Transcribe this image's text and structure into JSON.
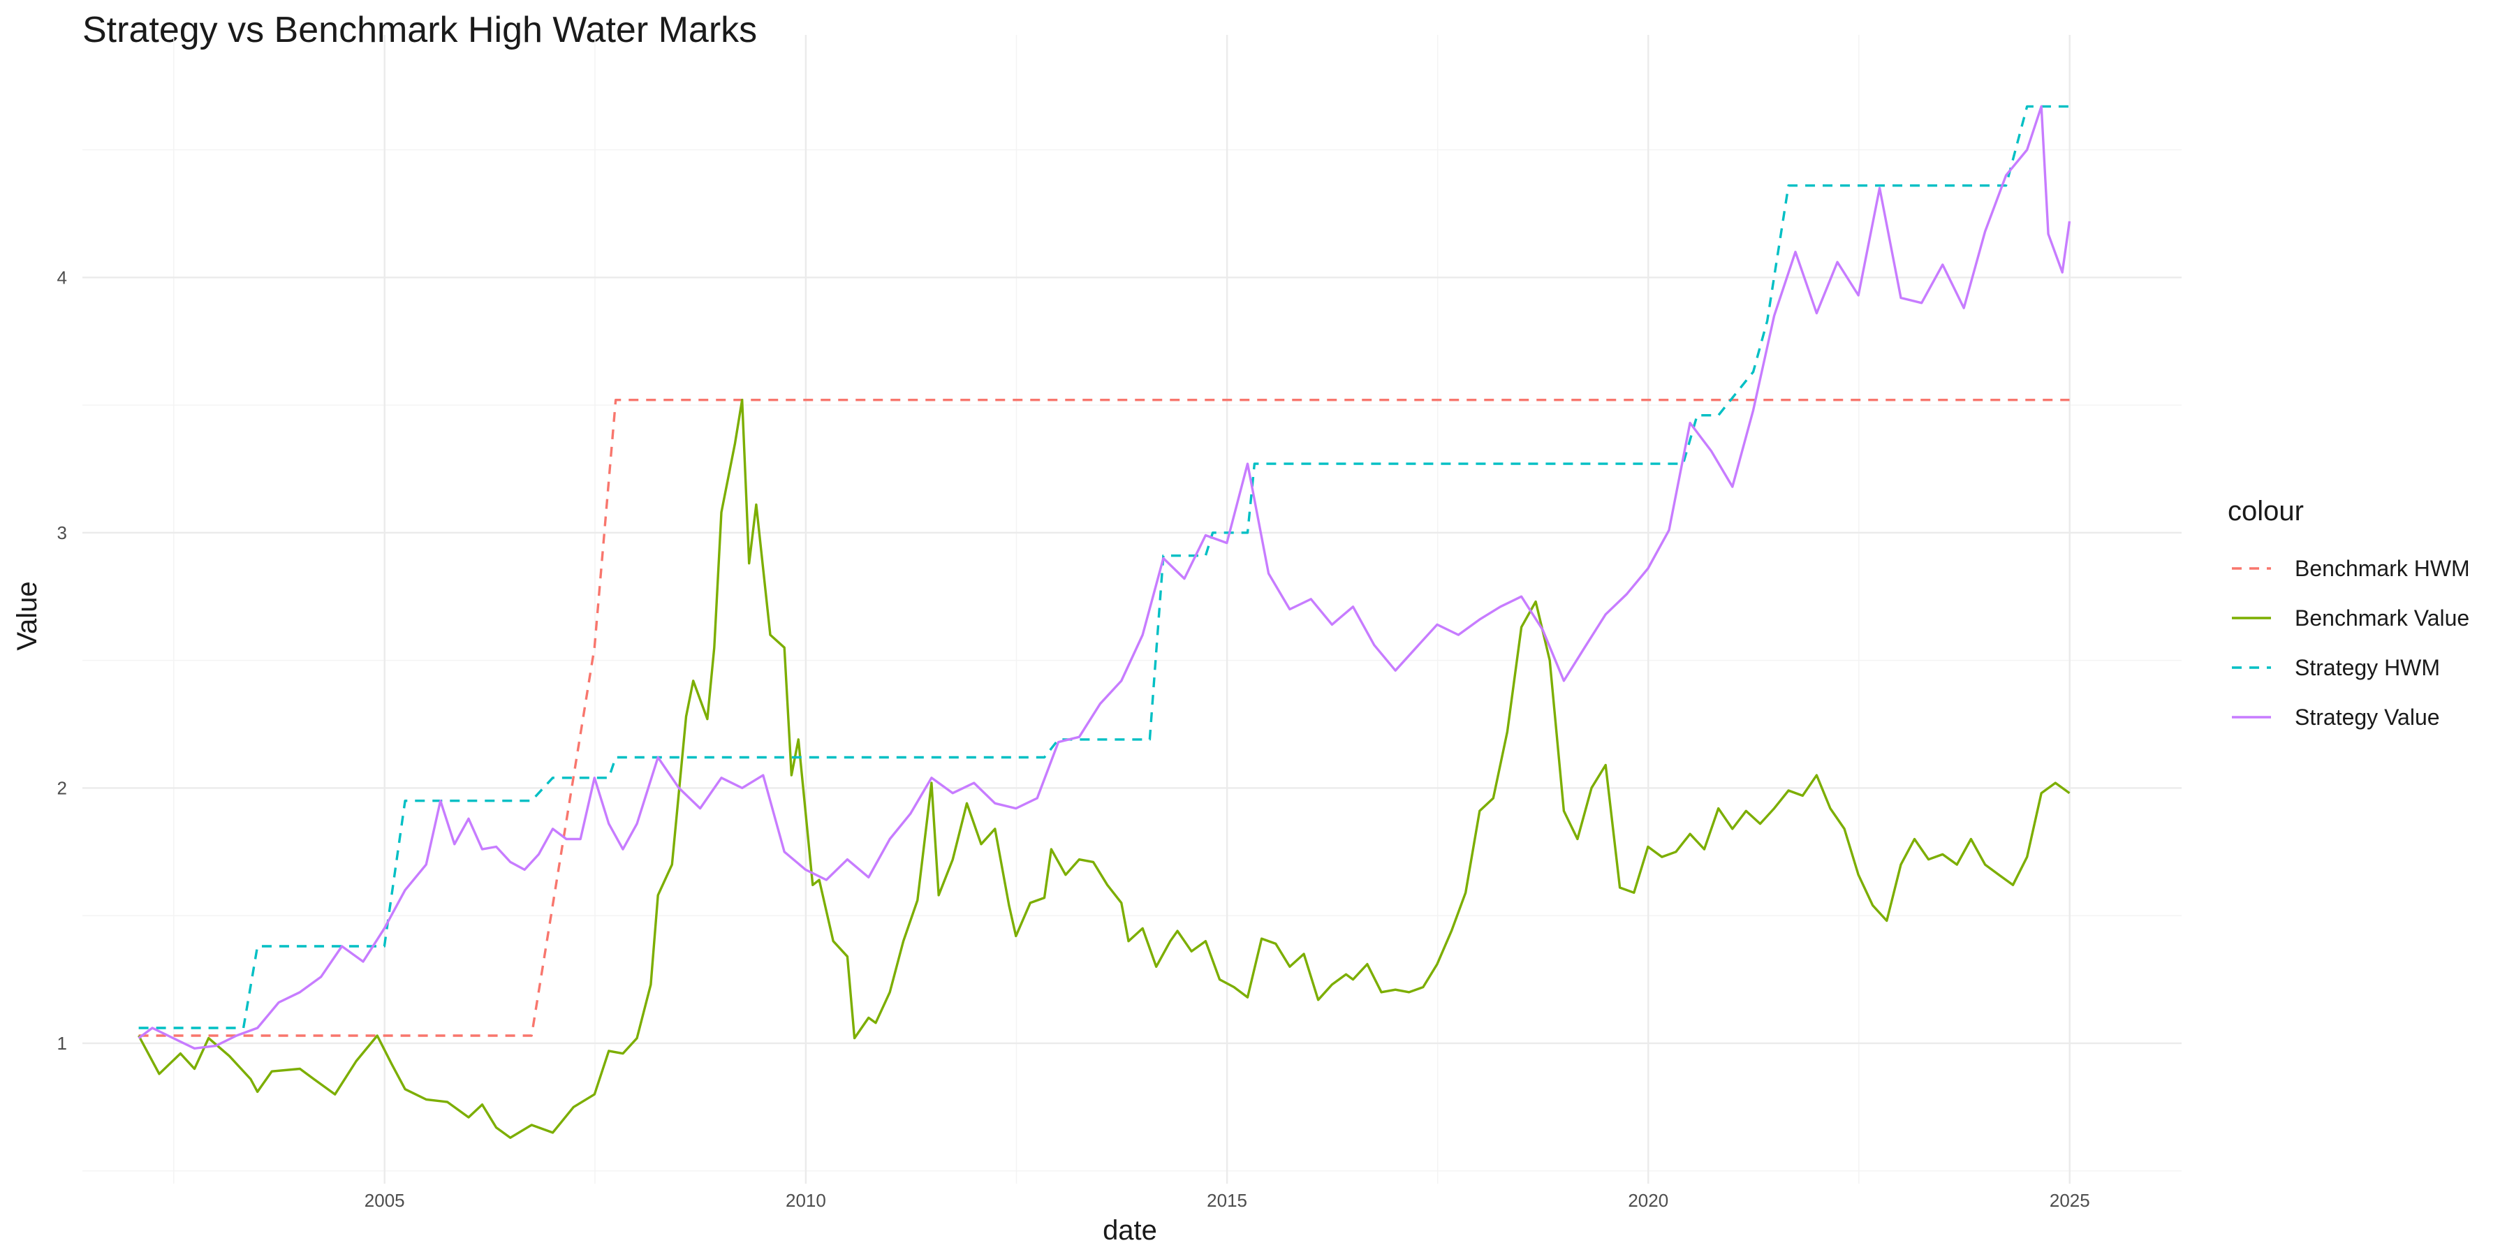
{
  "chart_data": {
    "type": "line",
    "title": "Strategy vs Benchmark High Water Marks",
    "xlabel": "date",
    "ylabel": "Value",
    "xlim": [
      "2001-06-01",
      "2026-05-01"
    ],
    "ylim": [
      0.45,
      4.95
    ],
    "x_ticks": [
      "2005",
      "2010",
      "2015",
      "2020",
      "2025"
    ],
    "y_ticks": [
      "1",
      "2",
      "3",
      "4"
    ],
    "grid": true,
    "legend": {
      "title": "colour",
      "position": "right",
      "items": [
        {
          "label": "Benchmark HWM",
          "color": "#F8766D",
          "dash": true
        },
        {
          "label": "Benchmark Value",
          "color": "#7CAE00",
          "dash": false
        },
        {
          "label": "Strategy HWM",
          "color": "#00BFC4",
          "dash": true
        },
        {
          "label": "Strategy Value",
          "color": "#C77CFF",
          "dash": false
        }
      ]
    },
    "series": [
      {
        "name": "Benchmark HWM",
        "color": "#F8766D",
        "dash": true,
        "points": [
          [
            "2002-01-31",
            1.03
          ],
          [
            "2006-09-30",
            1.03
          ],
          [
            "2007-06-30",
            2.55
          ],
          [
            "2007-09-30",
            3.52
          ],
          [
            "2024-12-31",
            3.52
          ]
        ]
      },
      {
        "name": "Benchmark Value",
        "color": "#7CAE00",
        "dash": false,
        "points": [
          [
            "2002-01-31",
            1.03
          ],
          [
            "2002-04-30",
            0.88
          ],
          [
            "2002-07-31",
            0.96
          ],
          [
            "2002-09-30",
            0.9
          ],
          [
            "2002-11-30",
            1.02
          ],
          [
            "2003-02-28",
            0.95
          ],
          [
            "2003-05-31",
            0.86
          ],
          [
            "2003-06-30",
            0.81
          ],
          [
            "2003-08-31",
            0.89
          ],
          [
            "2003-12-31",
            0.9
          ],
          [
            "2004-02-29",
            0.86
          ],
          [
            "2004-05-31",
            0.8
          ],
          [
            "2004-08-31",
            0.93
          ],
          [
            "2004-11-30",
            1.03
          ],
          [
            "2005-01-31",
            0.92
          ],
          [
            "2005-03-31",
            0.82
          ],
          [
            "2005-06-30",
            0.78
          ],
          [
            "2005-09-30",
            0.77
          ],
          [
            "2005-12-31",
            0.71
          ],
          [
            "2006-02-28",
            0.76
          ],
          [
            "2006-04-30",
            0.67
          ],
          [
            "2006-06-30",
            0.63
          ],
          [
            "2006-09-30",
            0.68
          ],
          [
            "2006-12-31",
            0.65
          ],
          [
            "2007-03-31",
            0.75
          ],
          [
            "2007-06-30",
            0.8
          ],
          [
            "2007-08-31",
            0.97
          ],
          [
            "2007-10-31",
            0.96
          ],
          [
            "2007-12-31",
            1.02
          ],
          [
            "2008-02-29",
            1.23
          ],
          [
            "2008-03-31",
            1.58
          ],
          [
            "2008-05-31",
            1.7
          ],
          [
            "2008-07-31",
            2.28
          ],
          [
            "2008-08-31",
            2.42
          ],
          [
            "2008-10-31",
            2.27
          ],
          [
            "2008-11-30",
            2.55
          ],
          [
            "2008-12-31",
            3.08
          ],
          [
            "2009-02-28",
            3.35
          ],
          [
            "2009-03-31",
            3.52
          ],
          [
            "2009-04-30",
            2.88
          ],
          [
            "2009-05-31",
            3.11
          ],
          [
            "2009-07-31",
            2.6
          ],
          [
            "2009-09-30",
            2.55
          ],
          [
            "2009-10-31",
            2.05
          ],
          [
            "2009-11-30",
            2.19
          ],
          [
            "2010-01-31",
            1.62
          ],
          [
            "2010-02-28",
            1.64
          ],
          [
            "2010-04-30",
            1.4
          ],
          [
            "2010-06-30",
            1.34
          ],
          [
            "2010-07-31",
            1.02
          ],
          [
            "2010-09-30",
            1.1
          ],
          [
            "2010-10-31",
            1.08
          ],
          [
            "2010-12-31",
            1.2
          ],
          [
            "2011-02-28",
            1.4
          ],
          [
            "2011-04-30",
            1.56
          ],
          [
            "2011-06-30",
            2.02
          ],
          [
            "2011-07-31",
            1.58
          ],
          [
            "2011-09-30",
            1.72
          ],
          [
            "2011-11-30",
            1.94
          ],
          [
            "2012-01-31",
            1.78
          ],
          [
            "2012-03-31",
            1.84
          ],
          [
            "2012-05-31",
            1.54
          ],
          [
            "2012-06-30",
            1.42
          ],
          [
            "2012-08-31",
            1.55
          ],
          [
            "2012-10-31",
            1.57
          ],
          [
            "2012-11-30",
            1.76
          ],
          [
            "2013-01-31",
            1.66
          ],
          [
            "2013-03-31",
            1.72
          ],
          [
            "2013-05-31",
            1.71
          ],
          [
            "2013-07-31",
            1.62
          ],
          [
            "2013-09-30",
            1.55
          ],
          [
            "2013-10-31",
            1.4
          ],
          [
            "2013-12-31",
            1.45
          ],
          [
            "2014-02-28",
            1.3
          ],
          [
            "2014-04-30",
            1.4
          ],
          [
            "2014-05-31",
            1.44
          ],
          [
            "2014-07-31",
            1.36
          ],
          [
            "2014-09-30",
            1.4
          ],
          [
            "2014-11-30",
            1.25
          ],
          [
            "2015-01-31",
            1.22
          ],
          [
            "2015-03-31",
            1.18
          ],
          [
            "2015-05-31",
            1.41
          ],
          [
            "2015-07-31",
            1.39
          ],
          [
            "2015-09-30",
            1.3
          ],
          [
            "2015-11-30",
            1.35
          ],
          [
            "2016-01-31",
            1.17
          ],
          [
            "2016-03-31",
            1.23
          ],
          [
            "2016-05-31",
            1.27
          ],
          [
            "2016-06-30",
            1.25
          ],
          [
            "2016-08-31",
            1.31
          ],
          [
            "2016-10-31",
            1.2
          ],
          [
            "2016-12-31",
            1.21
          ],
          [
            "2017-02-28",
            1.2
          ],
          [
            "2017-04-30",
            1.22
          ],
          [
            "2017-06-30",
            1.31
          ],
          [
            "2017-08-31",
            1.44
          ],
          [
            "2017-10-31",
            1.59
          ],
          [
            "2017-12-31",
            1.91
          ],
          [
            "2018-02-28",
            1.96
          ],
          [
            "2018-04-30",
            2.22
          ],
          [
            "2018-06-30",
            2.63
          ],
          [
            "2018-08-31",
            2.73
          ],
          [
            "2018-10-31",
            2.5
          ],
          [
            "2018-12-31",
            1.91
          ],
          [
            "2019-02-28",
            1.8
          ],
          [
            "2019-04-30",
            2.0
          ],
          [
            "2019-06-30",
            2.09
          ],
          [
            "2019-08-31",
            1.61
          ],
          [
            "2019-10-31",
            1.59
          ],
          [
            "2019-12-31",
            1.77
          ],
          [
            "2020-02-29",
            1.73
          ],
          [
            "2020-04-30",
            1.75
          ],
          [
            "2020-06-30",
            1.82
          ],
          [
            "2020-08-31",
            1.76
          ],
          [
            "2020-10-31",
            1.92
          ],
          [
            "2020-12-31",
            1.84
          ],
          [
            "2021-02-28",
            1.91
          ],
          [
            "2021-04-30",
            1.86
          ],
          [
            "2021-06-30",
            1.92
          ],
          [
            "2021-08-31",
            1.99
          ],
          [
            "2021-10-31",
            1.97
          ],
          [
            "2021-12-31",
            2.05
          ],
          [
            "2022-02-28",
            1.92
          ],
          [
            "2022-04-30",
            1.84
          ],
          [
            "2022-06-30",
            1.66
          ],
          [
            "2022-08-31",
            1.54
          ],
          [
            "2022-10-31",
            1.48
          ],
          [
            "2022-12-31",
            1.7
          ],
          [
            "2023-02-28",
            1.8
          ],
          [
            "2023-04-30",
            1.72
          ],
          [
            "2023-06-30",
            1.74
          ],
          [
            "2023-08-31",
            1.7
          ],
          [
            "2023-10-31",
            1.8
          ],
          [
            "2023-12-31",
            1.7
          ],
          [
            "2024-02-29",
            1.66
          ],
          [
            "2024-04-30",
            1.62
          ],
          [
            "2024-06-30",
            1.73
          ],
          [
            "2024-08-31",
            1.98
          ],
          [
            "2024-10-31",
            2.02
          ],
          [
            "2024-12-31",
            1.98
          ]
        ]
      },
      {
        "name": "Strategy HWM",
        "color": "#00BFC4",
        "dash": true,
        "points": [
          [
            "2002-01-31",
            1.06
          ],
          [
            "2003-04-30",
            1.06
          ],
          [
            "2003-06-30",
            1.38
          ],
          [
            "2004-12-31",
            1.38
          ],
          [
            "2005-03-31",
            1.95
          ],
          [
            "2006-09-30",
            1.95
          ],
          [
            "2006-12-31",
            2.04
          ],
          [
            "2007-08-31",
            2.04
          ],
          [
            "2007-09-30",
            2.12
          ],
          [
            "2012-10-31",
            2.12
          ],
          [
            "2012-12-31",
            2.19
          ],
          [
            "2014-01-31",
            2.19
          ],
          [
            "2014-03-31",
            2.91
          ],
          [
            "2014-09-30",
            2.91
          ],
          [
            "2014-10-31",
            3.0
          ],
          [
            "2015-03-31",
            3.0
          ],
          [
            "2015-04-30",
            3.27
          ],
          [
            "2020-05-31",
            3.27
          ],
          [
            "2020-07-31",
            3.46
          ],
          [
            "2020-10-31",
            3.46
          ],
          [
            "2021-03-31",
            3.63
          ],
          [
            "2021-05-31",
            3.83
          ],
          [
            "2021-08-31",
            4.36
          ],
          [
            "2024-03-31",
            4.36
          ],
          [
            "2024-06-30",
            4.67
          ],
          [
            "2024-12-31",
            4.67
          ]
        ]
      },
      {
        "name": "Strategy Value",
        "color": "#C77CFF",
        "dash": false,
        "points": [
          [
            "2002-01-31",
            1.02
          ],
          [
            "2002-03-31",
            1.06
          ],
          [
            "2002-06-30",
            1.02
          ],
          [
            "2002-09-30",
            0.98
          ],
          [
            "2002-12-31",
            0.99
          ],
          [
            "2003-03-31",
            1.03
          ],
          [
            "2003-06-30",
            1.06
          ],
          [
            "2003-09-30",
            1.16
          ],
          [
            "2003-12-31",
            1.2
          ],
          [
            "2004-03-31",
            1.26
          ],
          [
            "2004-06-30",
            1.38
          ],
          [
            "2004-09-30",
            1.32
          ],
          [
            "2004-12-31",
            1.45
          ],
          [
            "2005-03-31",
            1.6
          ],
          [
            "2005-06-30",
            1.7
          ],
          [
            "2005-08-31",
            1.95
          ],
          [
            "2005-10-31",
            1.78
          ],
          [
            "2005-12-31",
            1.88
          ],
          [
            "2006-02-28",
            1.76
          ],
          [
            "2006-04-30",
            1.77
          ],
          [
            "2006-06-30",
            1.71
          ],
          [
            "2006-08-31",
            1.68
          ],
          [
            "2006-10-31",
            1.74
          ],
          [
            "2006-12-31",
            1.84
          ],
          [
            "2007-02-28",
            1.8
          ],
          [
            "2007-04-30",
            1.8
          ],
          [
            "2007-06-30",
            2.04
          ],
          [
            "2007-08-31",
            1.86
          ],
          [
            "2007-10-31",
            1.76
          ],
          [
            "2007-12-31",
            1.86
          ],
          [
            "2008-03-31",
            2.12
          ],
          [
            "2008-06-30",
            2.0
          ],
          [
            "2008-09-30",
            1.92
          ],
          [
            "2008-12-31",
            2.04
          ],
          [
            "2009-03-31",
            2.0
          ],
          [
            "2009-06-30",
            2.05
          ],
          [
            "2009-09-30",
            1.75
          ],
          [
            "2009-12-31",
            1.68
          ],
          [
            "2010-03-31",
            1.64
          ],
          [
            "2010-06-30",
            1.72
          ],
          [
            "2010-09-30",
            1.65
          ],
          [
            "2010-12-31",
            1.8
          ],
          [
            "2011-03-31",
            1.9
          ],
          [
            "2011-06-30",
            2.04
          ],
          [
            "2011-09-30",
            1.98
          ],
          [
            "2011-12-31",
            2.02
          ],
          [
            "2012-03-31",
            1.94
          ],
          [
            "2012-06-30",
            1.92
          ],
          [
            "2012-09-30",
            1.96
          ],
          [
            "2012-12-31",
            2.18
          ],
          [
            "2013-03-31",
            2.2
          ],
          [
            "2013-06-30",
            2.33
          ],
          [
            "2013-09-30",
            2.42
          ],
          [
            "2013-12-31",
            2.6
          ],
          [
            "2014-03-31",
            2.9
          ],
          [
            "2014-06-30",
            2.82
          ],
          [
            "2014-09-30",
            2.99
          ],
          [
            "2014-12-31",
            2.96
          ],
          [
            "2015-03-31",
            3.27
          ],
          [
            "2015-06-30",
            2.84
          ],
          [
            "2015-09-30",
            2.7
          ],
          [
            "2015-12-31",
            2.74
          ],
          [
            "2016-03-31",
            2.64
          ],
          [
            "2016-06-30",
            2.71
          ],
          [
            "2016-09-30",
            2.56
          ],
          [
            "2016-12-31",
            2.46
          ],
          [
            "2017-03-31",
            2.55
          ],
          [
            "2017-06-30",
            2.64
          ],
          [
            "2017-09-30",
            2.6
          ],
          [
            "2017-12-31",
            2.66
          ],
          [
            "2018-03-31",
            2.71
          ],
          [
            "2018-06-30",
            2.75
          ],
          [
            "2018-09-30",
            2.62
          ],
          [
            "2018-12-31",
            2.42
          ],
          [
            "2019-03-31",
            2.55
          ],
          [
            "2019-06-30",
            2.68
          ],
          [
            "2019-09-30",
            2.76
          ],
          [
            "2019-12-31",
            2.86
          ],
          [
            "2020-03-31",
            3.01
          ],
          [
            "2020-06-30",
            3.43
          ],
          [
            "2020-09-30",
            3.32
          ],
          [
            "2020-12-31",
            3.18
          ],
          [
            "2021-03-31",
            3.48
          ],
          [
            "2021-06-30",
            3.85
          ],
          [
            "2021-09-30",
            4.1
          ],
          [
            "2021-12-31",
            3.86
          ],
          [
            "2022-03-31",
            4.06
          ],
          [
            "2022-06-30",
            3.93
          ],
          [
            "2022-09-30",
            4.35
          ],
          [
            "2022-12-31",
            3.92
          ],
          [
            "2023-03-31",
            3.9
          ],
          [
            "2023-06-30",
            4.05
          ],
          [
            "2023-09-30",
            3.88
          ],
          [
            "2023-12-31",
            4.18
          ],
          [
            "2024-03-31",
            4.4
          ],
          [
            "2024-06-30",
            4.5
          ],
          [
            "2024-08-31",
            4.67
          ],
          [
            "2024-09-30",
            4.17
          ],
          [
            "2024-11-30",
            4.02
          ],
          [
            "2024-12-31",
            4.22
          ]
        ]
      }
    ]
  }
}
